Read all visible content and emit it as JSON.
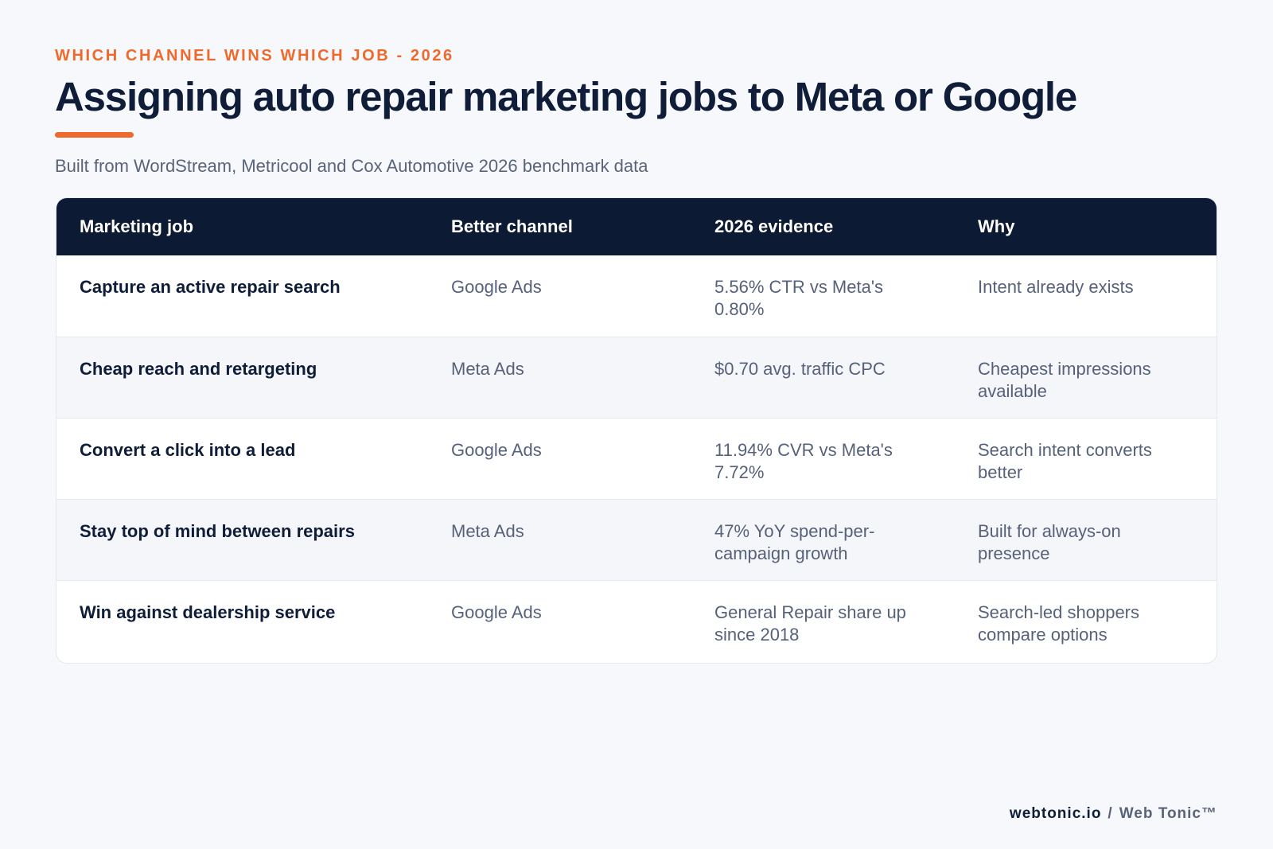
{
  "header": {
    "eyebrow": "WHICH CHANNEL WINS WHICH JOB - 2026",
    "title": "Assigning auto repair marketing jobs to Meta or Google",
    "subtitle": "Built from WordStream, Metricool and Cox Automotive 2026 benchmark data"
  },
  "table": {
    "columns": [
      "Marketing job",
      "Better channel",
      "2026 evidence",
      "Why"
    ],
    "rows": [
      {
        "job": "Capture an active repair search",
        "channel": "Google Ads",
        "evidence": "5.56% CTR vs Meta's 0.80%",
        "why": "Intent already exists"
      },
      {
        "job": "Cheap reach and retargeting",
        "channel": "Meta Ads",
        "evidence": "$0.70 avg. traffic CPC",
        "why": "Cheapest impressions available"
      },
      {
        "job": "Convert a click into a lead",
        "channel": "Google Ads",
        "evidence": "11.94% CVR vs Meta's 7.72%",
        "why": "Search intent converts better"
      },
      {
        "job": "Stay top of mind between repairs",
        "channel": "Meta Ads",
        "evidence": "47% YoY spend-per-campaign growth",
        "why": "Built for always-on presence"
      },
      {
        "job": "Win against dealership service",
        "channel": "Google Ads",
        "evidence": "General Repair share up since 2018",
        "why": "Search-led shoppers compare options"
      }
    ]
  },
  "footer": {
    "domain": "webtonic.io",
    "separator": "/",
    "brand": "Web Tonic™"
  },
  "colors": {
    "accent": "#ee6a2c",
    "header_bg": "#0d1a33",
    "title": "#0f1d38",
    "muted_text": "#56617a",
    "page_bg": "#f6f8fb"
  }
}
